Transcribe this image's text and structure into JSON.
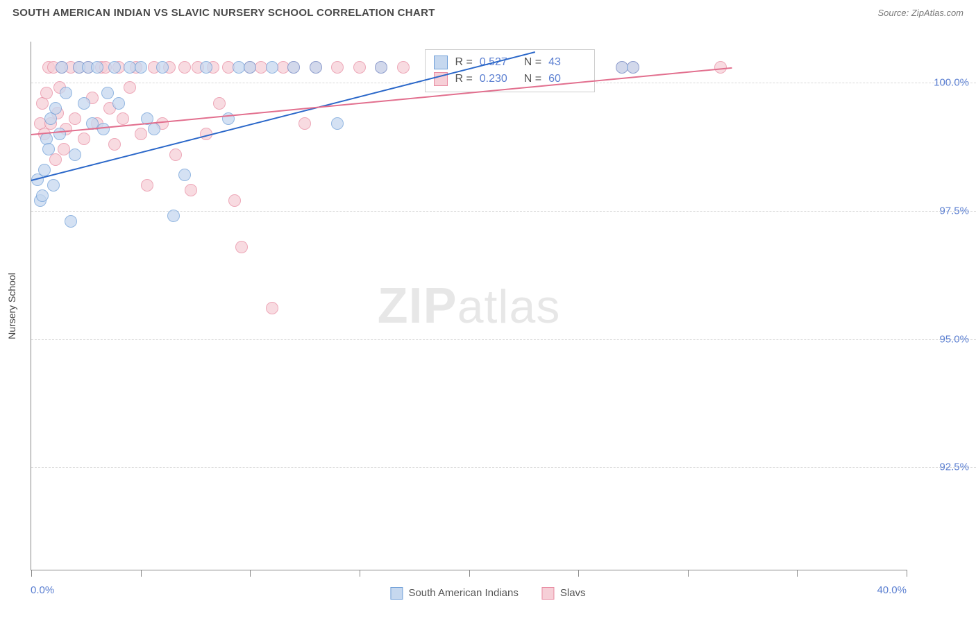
{
  "header": {
    "title": "SOUTH AMERICAN INDIAN VS SLAVIC NURSERY SCHOOL CORRELATION CHART",
    "source": "Source: ZipAtlas.com"
  },
  "watermark": {
    "bold": "ZIP",
    "light": "atlas"
  },
  "chart": {
    "type": "scatter",
    "background_color": "#ffffff",
    "grid_color": "#d8d8d8",
    "axis_color": "#888888",
    "ylabel": "Nursery School",
    "ylabel_fontsize": 14,
    "xlim": [
      0,
      40
    ],
    "ylim": [
      90.5,
      100.8
    ],
    "xtick_positions": [
      0,
      5,
      10,
      15,
      20,
      25,
      30,
      35,
      40
    ],
    "xtick_labels_visible": {
      "min": "0.0%",
      "max": "40.0%"
    },
    "ytick_positions": [
      92.5,
      95.0,
      97.5,
      100.0
    ],
    "ytick_labels": [
      "92.5%",
      "95.0%",
      "97.5%",
      "100.0%"
    ],
    "ytick_label_color": "#5b7fd1",
    "xtick_label_color": "#5b7fd1",
    "marker_radius": 9,
    "marker_stroke_width": 1.5,
    "series": [
      {
        "name": "South American Indians",
        "fill": "#c6d8ef",
        "stroke": "#6f9fd8",
        "r_value": "0.527",
        "n_value": "43",
        "trend": {
          "x0": 0,
          "y0": 98.1,
          "x1": 23,
          "y1": 100.6,
          "color": "#2a67c9",
          "width": 2
        },
        "points": [
          [
            0.3,
            98.1
          ],
          [
            0.4,
            97.7
          ],
          [
            0.5,
            97.8
          ],
          [
            0.6,
            98.3
          ],
          [
            0.7,
            98.9
          ],
          [
            0.8,
            98.7
          ],
          [
            0.9,
            99.3
          ],
          [
            1.0,
            98.0
          ],
          [
            1.1,
            99.5
          ],
          [
            1.3,
            99.0
          ],
          [
            1.4,
            100.3
          ],
          [
            1.6,
            99.8
          ],
          [
            1.8,
            97.3
          ],
          [
            2.0,
            98.6
          ],
          [
            2.2,
            100.3
          ],
          [
            2.4,
            99.6
          ],
          [
            2.6,
            100.3
          ],
          [
            2.8,
            99.2
          ],
          [
            3.0,
            100.3
          ],
          [
            3.3,
            99.1
          ],
          [
            3.5,
            99.8
          ],
          [
            3.8,
            100.3
          ],
          [
            4.0,
            99.6
          ],
          [
            4.5,
            100.3
          ],
          [
            5.0,
            100.3
          ],
          [
            5.3,
            99.3
          ],
          [
            5.6,
            99.1
          ],
          [
            6.0,
            100.3
          ],
          [
            6.5,
            97.4
          ],
          [
            7.0,
            98.2
          ],
          [
            8.0,
            100.3
          ],
          [
            9.0,
            99.3
          ],
          [
            9.5,
            100.3
          ],
          [
            10.0,
            100.3
          ],
          [
            11.0,
            100.3
          ],
          [
            12.0,
            100.3
          ],
          [
            13.0,
            100.3
          ],
          [
            14.0,
            99.2
          ],
          [
            16.0,
            100.3
          ],
          [
            21.0,
            100.3
          ],
          [
            22.0,
            100.0
          ],
          [
            27.0,
            100.3
          ],
          [
            27.5,
            100.3
          ]
        ]
      },
      {
        "name": "Slavs",
        "fill": "#f6cfd7",
        "stroke": "#e88ba1",
        "r_value": "0.230",
        "n_value": "60",
        "trend": {
          "x0": 0,
          "y0": 99.0,
          "x1": 32,
          "y1": 100.3,
          "color": "#e26f8e",
          "width": 2
        },
        "points": [
          [
            0.4,
            99.2
          ],
          [
            0.5,
            99.6
          ],
          [
            0.6,
            99.0
          ],
          [
            0.7,
            99.8
          ],
          [
            0.8,
            100.3
          ],
          [
            0.9,
            99.2
          ],
          [
            1.0,
            100.3
          ],
          [
            1.1,
            98.5
          ],
          [
            1.2,
            99.4
          ],
          [
            1.3,
            99.9
          ],
          [
            1.4,
            100.3
          ],
          [
            1.5,
            98.7
          ],
          [
            1.6,
            99.1
          ],
          [
            1.8,
            100.3
          ],
          [
            2.0,
            99.3
          ],
          [
            2.2,
            100.3
          ],
          [
            2.4,
            98.9
          ],
          [
            2.6,
            100.3
          ],
          [
            2.8,
            99.7
          ],
          [
            3.0,
            99.2
          ],
          [
            3.2,
            100.3
          ],
          [
            3.4,
            100.3
          ],
          [
            3.6,
            99.5
          ],
          [
            3.8,
            98.8
          ],
          [
            4.0,
            100.3
          ],
          [
            4.2,
            99.3
          ],
          [
            4.5,
            99.9
          ],
          [
            4.8,
            100.3
          ],
          [
            5.0,
            99.0
          ],
          [
            5.3,
            98.0
          ],
          [
            5.6,
            100.3
          ],
          [
            6.0,
            99.2
          ],
          [
            6.3,
            100.3
          ],
          [
            6.6,
            98.6
          ],
          [
            7.0,
            100.3
          ],
          [
            7.3,
            97.9
          ],
          [
            7.6,
            100.3
          ],
          [
            8.0,
            99.0
          ],
          [
            8.3,
            100.3
          ],
          [
            8.6,
            99.6
          ],
          [
            9.0,
            100.3
          ],
          [
            9.3,
            97.7
          ],
          [
            9.6,
            96.8
          ],
          [
            10.0,
            100.3
          ],
          [
            10.5,
            100.3
          ],
          [
            11.0,
            95.6
          ],
          [
            11.5,
            100.3
          ],
          [
            12.0,
            100.3
          ],
          [
            12.5,
            99.2
          ],
          [
            13.0,
            100.3
          ],
          [
            14.0,
            100.3
          ],
          [
            15.0,
            100.3
          ],
          [
            16.0,
            100.3
          ],
          [
            17.0,
            100.3
          ],
          [
            19.0,
            100.3
          ],
          [
            21.5,
            100.0
          ],
          [
            22.5,
            100.3
          ],
          [
            27.0,
            100.3
          ],
          [
            27.5,
            100.3
          ],
          [
            31.5,
            100.3
          ]
        ]
      }
    ],
    "stat_legend": {
      "left_pct": 45,
      "top_pct": 1.5
    }
  },
  "legend_bottom": {
    "items": [
      {
        "label": "South American Indians",
        "fill": "#c6d8ef",
        "stroke": "#6f9fd8"
      },
      {
        "label": "Slavs",
        "fill": "#f6cfd7",
        "stroke": "#e88ba1"
      }
    ]
  }
}
